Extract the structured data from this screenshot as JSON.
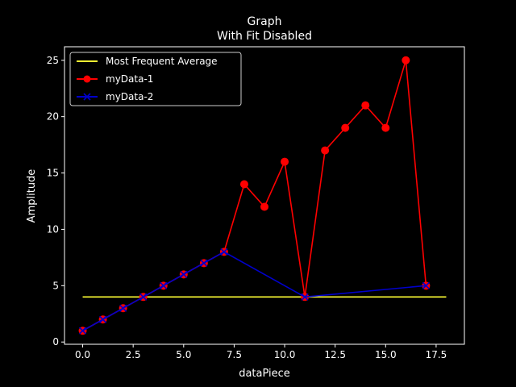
{
  "chart_data": {
    "type": "line",
    "title": "Graph",
    "subtitle": "With Fit Disabled",
    "xlabel": "dataPiece",
    "ylabel": "Amplitude",
    "xlim": [
      -0.9,
      18.9
    ],
    "ylim": [
      -0.2,
      26.2
    ],
    "xticks": [
      0,
      2.5,
      5,
      7.5,
      10,
      12.5,
      15,
      17.5
    ],
    "xtick_labels": [
      "0.0",
      "2.5",
      "5.0",
      "7.5",
      "10.0",
      "12.5",
      "15.0",
      "17.5"
    ],
    "yticks": [
      0,
      5,
      10,
      15,
      20,
      25
    ],
    "ytick_labels": [
      "0",
      "5",
      "10",
      "15",
      "20",
      "25"
    ],
    "grid": false,
    "legend_position": "top-left",
    "series": [
      {
        "name": "Most Frequent Average",
        "color": "#ffff33",
        "marker": "none",
        "x": [
          0,
          18
        ],
        "y": [
          4,
          4
        ]
      },
      {
        "name": "myData-1",
        "color": "#ff0000",
        "marker": "circle",
        "x": [
          0,
          1,
          2,
          3,
          4,
          5,
          6,
          7,
          8,
          9,
          10,
          11,
          12,
          13,
          14,
          15,
          16,
          17
        ],
        "y": [
          1,
          2,
          3,
          4,
          5,
          6,
          7,
          8,
          14,
          12,
          16,
          4,
          17,
          19,
          21,
          19,
          25,
          5
        ]
      },
      {
        "name": "myData-2",
        "color": "#0000cc",
        "marker": "x",
        "x": [
          0,
          1,
          2,
          3,
          4,
          5,
          6,
          7,
          11,
          17
        ],
        "y": [
          1,
          2,
          3,
          4,
          5,
          6,
          7,
          8,
          4,
          5
        ]
      }
    ]
  }
}
